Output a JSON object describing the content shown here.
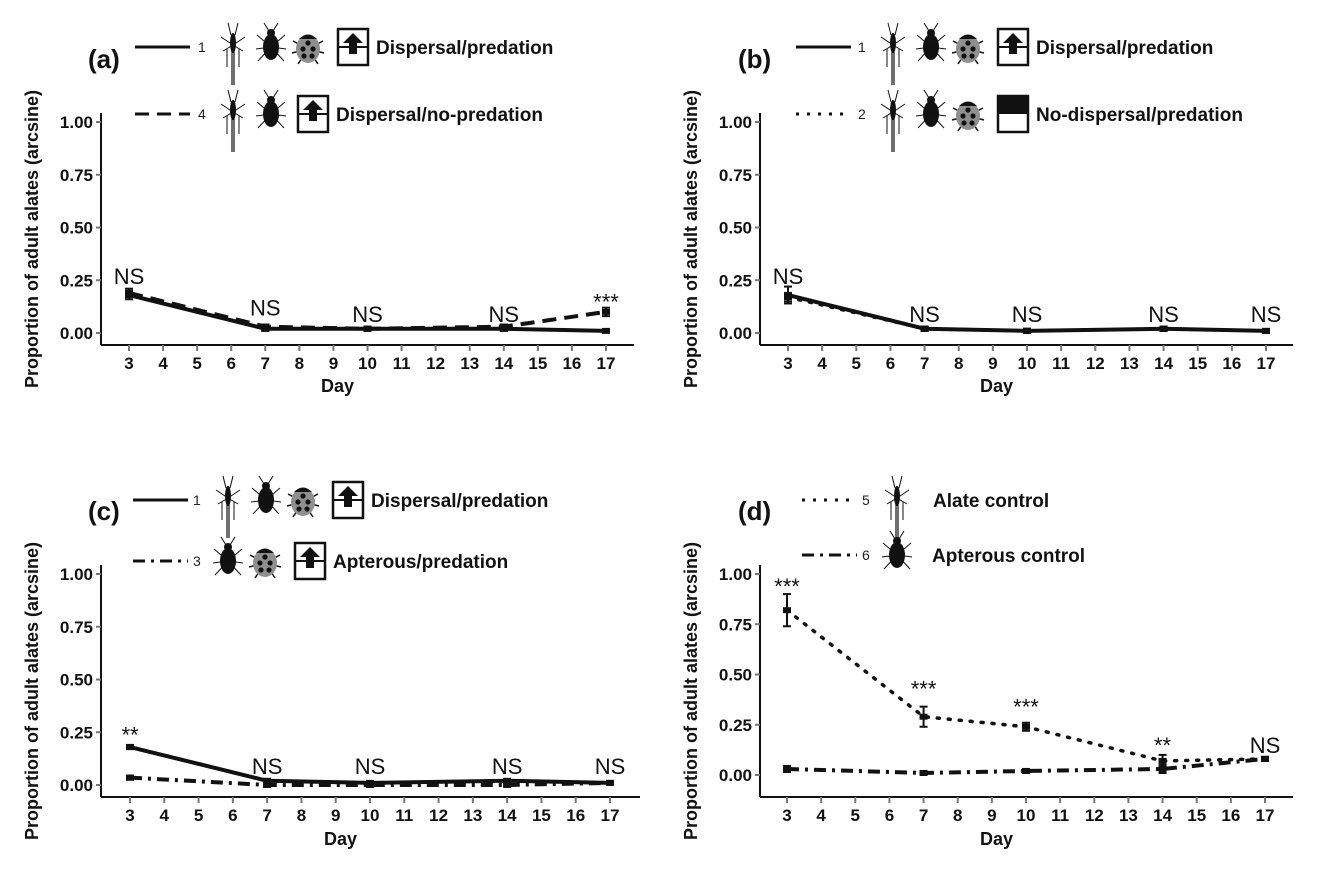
{
  "colors": {
    "line": "#111111",
    "axis": "#111111",
    "tick": "#777777",
    "ladybug": "#8f8f8f"
  },
  "chart_data": [
    {
      "type": "line",
      "panel": "(a)",
      "xlabel": "Day",
      "ylabel": "Proportion of adult alates (arcsine)",
      "xlim": [
        3,
        17
      ],
      "ylim": [
        0,
        1
      ],
      "x_ticks": [
        3,
        4,
        5,
        6,
        7,
        8,
        9,
        10,
        11,
        12,
        13,
        14,
        15,
        16,
        17
      ],
      "y_ticks": [
        "0.00",
        "0.25",
        "0.50",
        "0.75",
        "1.00"
      ],
      "y_tick_values": [
        0,
        0.25,
        0.5,
        0.75,
        1
      ],
      "x": [
        3,
        7,
        10,
        14,
        17
      ],
      "series": [
        {
          "name": "Dispersal/predation",
          "number": "1",
          "style": "solid",
          "icons": [
            "alate",
            "apterous",
            "ladybug",
            "dispersal-up"
          ],
          "values": [
            0.18,
            0.02,
            0.02,
            0.02,
            0.01
          ],
          "err": [
            0.02,
            0.01,
            0.01,
            0.01,
            0.005
          ]
        },
        {
          "name": "Dispersal/no-predation",
          "number": "4",
          "style": "dashed",
          "icons": [
            "alate",
            "apterous",
            "dispersal-up"
          ],
          "values": [
            0.19,
            0.03,
            0.02,
            0.03,
            0.1
          ],
          "err": [
            0.02,
            0.01,
            0.01,
            0.01,
            0.02
          ]
        }
      ],
      "annotations": [
        "NS",
        "NS",
        "NS",
        "NS",
        "***"
      ],
      "annotation_y": [
        0.27,
        0.12,
        0.09,
        0.09,
        0.15
      ]
    },
    {
      "type": "line",
      "panel": "(b)",
      "xlabel": "Day",
      "ylabel": "Proportion of adult alates (arcsine)",
      "xlim": [
        3,
        17
      ],
      "ylim": [
        0,
        1
      ],
      "x_ticks": [
        3,
        4,
        5,
        6,
        7,
        8,
        9,
        10,
        11,
        12,
        13,
        14,
        15,
        16,
        17
      ],
      "y_ticks": [
        "0.00",
        "0.25",
        "0.50",
        "0.75",
        "1.00"
      ],
      "y_tick_values": [
        0,
        0.25,
        0.5,
        0.75,
        1
      ],
      "x": [
        3,
        7,
        10,
        14,
        17
      ],
      "series": [
        {
          "name": "Dispersal/predation",
          "number": "1",
          "style": "solid",
          "icons": [
            "alate",
            "apterous",
            "ladybug",
            "dispersal-up"
          ],
          "values": [
            0.18,
            0.02,
            0.01,
            0.02,
            0.01
          ],
          "err": [
            0.04,
            0.01,
            0.01,
            0.01,
            0.005
          ]
        },
        {
          "name": "No-dispersal/predation",
          "number": "2",
          "style": "dotted",
          "icons": [
            "alate",
            "apterous",
            "ladybug",
            "no-dispersal"
          ],
          "values": [
            0.17,
            0.02,
            0.01,
            0.02,
            0.01
          ],
          "err": [
            0.02,
            0.01,
            0.01,
            0.01,
            0.005
          ]
        }
      ],
      "annotations": [
        "NS",
        "NS",
        "NS",
        "NS",
        "NS"
      ],
      "annotation_y": [
        0.27,
        0.09,
        0.09,
        0.09,
        0.09
      ]
    },
    {
      "type": "line",
      "panel": "(c)",
      "xlabel": "Day",
      "ylabel": "Proportion of adult alates (arcsine)",
      "xlim": [
        3,
        17
      ],
      "ylim": [
        0,
        1
      ],
      "x_ticks": [
        3,
        4,
        5,
        6,
        7,
        8,
        9,
        10,
        11,
        12,
        13,
        14,
        15,
        16,
        17
      ],
      "y_ticks": [
        "0.00",
        "0.25",
        "0.50",
        "0.75",
        "1.00"
      ],
      "y_tick_values": [
        0,
        0.25,
        0.5,
        0.75,
        1
      ],
      "x": [
        3,
        7,
        10,
        14,
        17
      ],
      "series": [
        {
          "name": "Dispersal/predation",
          "number": "1",
          "style": "solid",
          "icons": [
            "alate",
            "apterous",
            "ladybug",
            "dispersal-up"
          ],
          "values": [
            0.18,
            0.02,
            0.01,
            0.02,
            0.01
          ],
          "err": [
            0.01,
            0.005,
            0.005,
            0.005,
            0.005
          ]
        },
        {
          "name": "Apterous/predation",
          "number": "3",
          "style": "dashdot",
          "icons": [
            "apterous",
            "ladybug",
            "dispersal-up"
          ],
          "values": [
            0.035,
            0.0,
            0.0,
            0.0,
            0.01
          ],
          "err": [
            0.01,
            0.005,
            0.005,
            0.005,
            0.005
          ]
        }
      ],
      "annotations": [
        "**",
        "NS",
        "NS",
        "NS",
        "NS"
      ],
      "annotation_y": [
        0.24,
        0.09,
        0.09,
        0.09,
        0.09
      ]
    },
    {
      "type": "line",
      "panel": "(d)",
      "xlabel": "Day",
      "ylabel": "Proportion of adult alates (arcsine)",
      "xlim": [
        3,
        17
      ],
      "ylim": [
        0,
        1
      ],
      "x_ticks": [
        3,
        4,
        5,
        6,
        7,
        8,
        9,
        10,
        11,
        12,
        13,
        14,
        15,
        16,
        17
      ],
      "y_ticks": [
        "0.00",
        "0.25",
        "0.50",
        "0.75",
        "1.00"
      ],
      "y_tick_values": [
        0,
        0.25,
        0.5,
        0.75,
        1
      ],
      "x": [
        3,
        7,
        10,
        14,
        17
      ],
      "series": [
        {
          "name": "Alate control",
          "number": "5",
          "style": "dotted",
          "icons": [
            "alate"
          ],
          "values": [
            0.82,
            0.29,
            0.24,
            0.07,
            0.08
          ],
          "err": [
            0.08,
            0.05,
            0.02,
            0.03,
            0.01
          ]
        },
        {
          "name": "Apterous control",
          "number": "6",
          "style": "dashdot",
          "icons": [
            "apterous"
          ],
          "values": [
            0.03,
            0.01,
            0.02,
            0.03,
            0.08
          ],
          "err": [
            0.015,
            0.005,
            0.01,
            0.02,
            0.01
          ]
        }
      ],
      "annotations": [
        "***",
        "***",
        "***",
        "**",
        "NS"
      ],
      "annotation_y": [
        0.94,
        0.43,
        0.34,
        0.15,
        0.15
      ]
    }
  ]
}
